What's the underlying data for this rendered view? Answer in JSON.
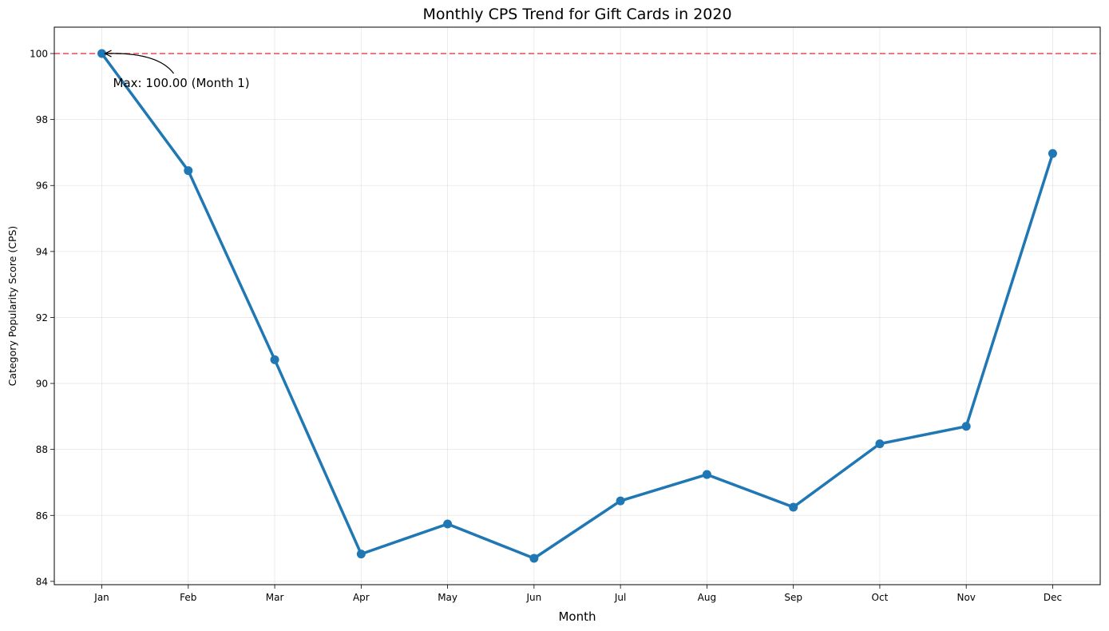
{
  "chart_data": {
    "type": "line",
    "title": "Monthly CPS Trend for Gift Cards in 2020",
    "xlabel": "Month",
    "ylabel": "Category Popularity Score (CPS)",
    "categories": [
      "Jan",
      "Feb",
      "Mar",
      "Apr",
      "May",
      "Jun",
      "Jul",
      "Aug",
      "Sep",
      "Oct",
      "Nov",
      "Dec"
    ],
    "series": [
      {
        "values": [
          100.0,
          96.45,
          90.72,
          84.83,
          85.74,
          84.7,
          86.44,
          87.24,
          86.25,
          88.17,
          88.7,
          96.97
        ],
        "color": "#1f77b4"
      }
    ],
    "ylim": [
      83.9,
      100.8
    ],
    "yticks": [
      84,
      86,
      88,
      90,
      92,
      94,
      96,
      98,
      100
    ],
    "grid": true,
    "reference_line": {
      "y": 100,
      "color": "#e8595b",
      "style": "dashed"
    },
    "annotation": {
      "text": "Max: 100.00 (Month 1)",
      "category_index": 0,
      "value": 100.0
    }
  }
}
